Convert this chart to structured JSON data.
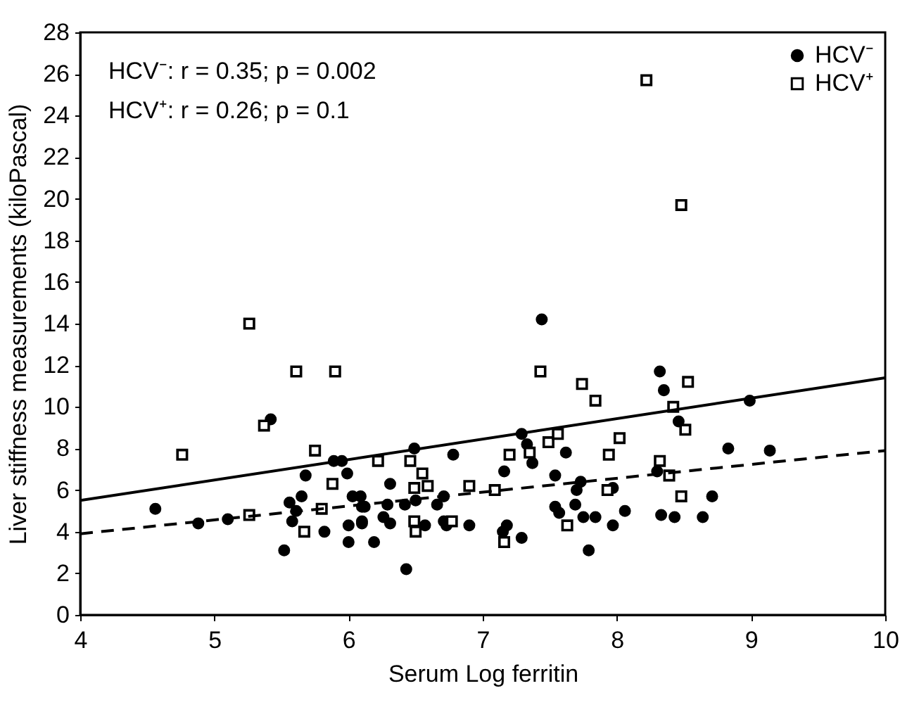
{
  "chart_data": {
    "type": "scatter",
    "xlabel": "Serum Log ferritin",
    "ylabel": "Liver stiffness measurements (kiloPascal)",
    "annotations": [
      "HCV⁻: r = 0.35; p = 0.002",
      "HCV⁺: r = 0.26; p = 0.1"
    ],
    "xlim": [
      4,
      10
    ],
    "xticks": [
      4,
      5,
      6,
      7,
      8,
      9,
      10
    ],
    "ylim": [
      0,
      28
    ],
    "yticks": [
      0,
      2,
      4,
      6,
      8,
      10,
      12,
      14,
      16,
      18,
      20,
      22,
      24,
      26,
      28
    ],
    "grid": false,
    "legend": "top right",
    "series": [
      {
        "name": "HCV⁻",
        "color": "#000000",
        "marker": "circle",
        "x": [
          5.42,
          4.56,
          4.88,
          5.1,
          5.52,
          5.68,
          5.65,
          5.56,
          5.61,
          5.58,
          5.82,
          5.89,
          5.95,
          5.99,
          6.03,
          6.09,
          6.0,
          6.0,
          6.1,
          6.1,
          6.12,
          6.1,
          6.19,
          6.43,
          6.31,
          6.29,
          6.26,
          6.31,
          6.42,
          6.5,
          6.57,
          6.66,
          6.71,
          6.71,
          6.73,
          6.9,
          7.18,
          7.15,
          7.29,
          7.54,
          7.57,
          7.69,
          7.7,
          7.73,
          7.75,
          7.84,
          7.97,
          7.97,
          8.06,
          7.79,
          7.44,
          6.49,
          6.78,
          7.29,
          7.33,
          7.37,
          7.16,
          7.62,
          7.54,
          8.32,
          8.35,
          8.46,
          8.99,
          8.83,
          9.14,
          8.3,
          8.33,
          8.43,
          8.64,
          8.71
        ],
        "values": [
          9.4,
          5.1,
          4.4,
          4.6,
          3.1,
          6.7,
          5.7,
          5.4,
          5.0,
          4.5,
          4.0,
          7.4,
          7.4,
          6.8,
          5.7,
          5.7,
          4.3,
          3.5,
          5.2,
          4.4,
          5.2,
          4.5,
          3.5,
          2.2,
          6.3,
          5.3,
          4.7,
          4.4,
          5.3,
          5.5,
          4.3,
          5.3,
          5.7,
          4.5,
          4.3,
          4.3,
          4.3,
          4.0,
          3.7,
          5.2,
          4.9,
          5.3,
          6.0,
          6.4,
          4.7,
          4.7,
          6.1,
          4.3,
          5.0,
          3.1,
          14.2,
          8.0,
          7.7,
          8.7,
          8.2,
          7.3,
          6.9,
          7.8,
          6.7,
          11.7,
          10.8,
          9.3,
          10.3,
          8.0,
          7.9,
          6.9,
          4.8,
          4.7,
          4.7,
          5.7
        ]
      },
      {
        "name": "HCV⁺",
        "color": "#000000",
        "marker": "square",
        "x": [
          4.76,
          5.26,
          5.61,
          5.9,
          5.37,
          5.75,
          5.88,
          5.8,
          5.26,
          5.67,
          6.22,
          6.46,
          6.55,
          6.49,
          6.59,
          6.9,
          7.09,
          6.49,
          6.5,
          6.77,
          7.16,
          7.2,
          7.35,
          7.43,
          7.74,
          7.84,
          7.49,
          7.56,
          7.94,
          8.02,
          7.93,
          7.63,
          8.53,
          8.42,
          8.51,
          8.32,
          8.39,
          8.48,
          8.22,
          8.48
        ],
        "values": [
          7.7,
          14.0,
          11.7,
          11.7,
          9.1,
          7.9,
          6.3,
          5.1,
          4.8,
          4.0,
          7.4,
          7.4,
          6.8,
          6.1,
          6.2,
          6.2,
          6.0,
          4.5,
          4.0,
          4.5,
          3.5,
          7.7,
          7.8,
          11.7,
          11.1,
          10.3,
          8.3,
          8.7,
          7.7,
          8.5,
          6.0,
          4.3,
          11.2,
          10.0,
          8.9,
          7.4,
          6.7,
          5.7,
          25.7,
          19.7
        ]
      },
      {
        "type": "line",
        "color": "#000000",
        "line_style": "dashed",
        "x": [
          4,
          10
        ],
        "values": [
          3.9,
          7.9
        ]
      },
      {
        "type": "line",
        "color": "#000000",
        "line_style": "solid",
        "x": [
          4,
          10
        ],
        "values": [
          5.5,
          11.4
        ]
      }
    ]
  }
}
